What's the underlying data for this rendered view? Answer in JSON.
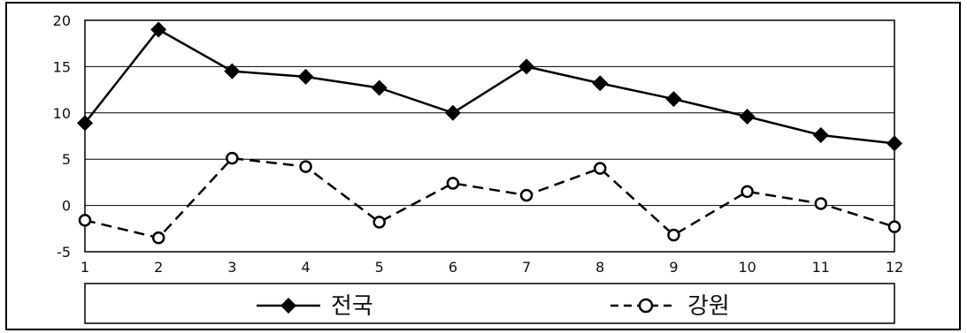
{
  "chart_data": {
    "type": "line",
    "x": [
      1,
      2,
      3,
      4,
      5,
      6,
      7,
      8,
      9,
      10,
      11,
      12
    ],
    "xticks": [
      "1",
      "2",
      "3",
      "4",
      "5",
      "6",
      "7",
      "8",
      "9",
      "10",
      "11",
      "12"
    ],
    "yticks": [
      "-5",
      "0",
      "5",
      "10",
      "15",
      "20"
    ],
    "ylim": [
      -5,
      20
    ],
    "grid": "horizontal",
    "legend": "bottom",
    "series": [
      {
        "name": "전국",
        "values": [
          8.9,
          19.0,
          14.5,
          13.9,
          12.7,
          10.0,
          15.0,
          13.2,
          11.5,
          9.6,
          7.6,
          6.7
        ],
        "style": "solid",
        "marker": "filled-diamond",
        "color": "#000000"
      },
      {
        "name": "강원",
        "values": [
          -1.6,
          -3.5,
          5.1,
          4.2,
          -1.8,
          2.4,
          1.1,
          4.0,
          -3.2,
          1.5,
          0.2,
          -2.3
        ],
        "style": "dashed",
        "marker": "open-circle",
        "color": "#000000"
      }
    ]
  }
}
